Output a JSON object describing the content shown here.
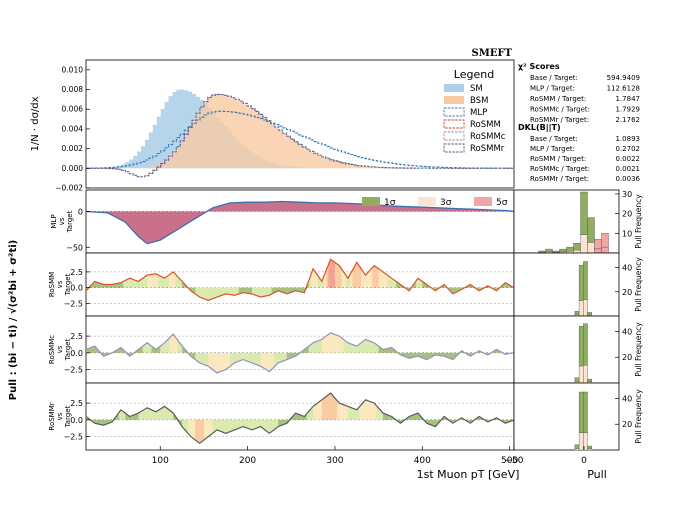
{
  "chart_data": [
    {
      "panel": "distribution",
      "type": "step-histogram",
      "title": "SMEFT",
      "ylabel": "1/N · dσ/dx",
      "ylim": [
        -0.002,
        0.011
      ],
      "yticks": [
        "0.010",
        "0.008",
        "0.006",
        "0.004",
        "0.002",
        "0.000",
        "−0.002"
      ],
      "ytick_values": [
        0.01,
        0.008,
        0.006,
        0.004,
        0.002,
        0.0,
        -0.002
      ],
      "x": {
        "range": [
          15,
          505
        ],
        "ticks": [
          100,
          200,
          300,
          400,
          500
        ],
        "tick_labels": [
          "100",
          "200",
          "300",
          "400",
          "500"
        ]
      },
      "legend": {
        "title": "Legend",
        "position": "top-right",
        "entries": [
          {
            "label": "SM",
            "color": "#aecfe8",
            "style": "fill"
          },
          {
            "label": "BSM",
            "color": "#f8caa4",
            "style": "fill"
          },
          {
            "label": "MLP",
            "color": "#2f7fb5",
            "style": "dashed"
          },
          {
            "label": "RoSMM",
            "color": "#d9342b",
            "style": "dashed"
          },
          {
            "label": "RoSMMc",
            "color": "#9a86c4",
            "style": "dashed"
          },
          {
            "label": "RoSMMr",
            "color": "#555a78",
            "style": "dashed"
          }
        ]
      },
      "series": [
        {
          "name": "SM",
          "shape": "peak",
          "peak_x": 123,
          "peak_y": 0.008,
          "left_width": 38,
          "right_width": 62,
          "start_x": 25,
          "end_x": 505
        },
        {
          "name": "BSM",
          "shape": "peak",
          "peak_x": 165,
          "peak_y": 0.0074,
          "left_width": 40,
          "right_width": 85,
          "start_x": 50,
          "end_x": 505
        },
        {
          "name": "MLP",
          "shape": "peak",
          "peak_x": 168,
          "peak_y": 0.0058,
          "left_width": 60,
          "right_width": 120,
          "start_x": 15,
          "end_x": 505
        },
        {
          "name": "RoSMMr",
          "shape": "peak",
          "peak_x": 165,
          "peak_y": 0.0075,
          "left_width": 40,
          "right_width": 85,
          "dip_x": 80,
          "dip_y": -0.0009,
          "start_x": 15,
          "end_x": 505
        }
      ]
    },
    {
      "panel": "pull",
      "type": "area",
      "ylabel_parts": [
        "MLP",
        "vs",
        "Target"
      ],
      "ylim": [
        -58,
        30
      ],
      "yticks": [
        0,
        -50
      ],
      "tick_labels": [
        "0",
        "−50"
      ],
      "x": [
        15,
        40,
        60,
        75,
        85,
        100,
        120,
        140,
        160,
        180,
        200,
        220,
        240,
        260,
        280,
        300,
        320,
        340,
        360,
        380,
        400,
        420,
        440,
        460,
        480,
        500,
        505
      ],
      "values": [
        0,
        -2,
        -15,
        -35,
        -45,
        -40,
        -25,
        -10,
        5,
        12,
        13,
        13,
        14,
        13,
        12,
        12,
        11,
        10,
        8,
        7,
        6,
        5,
        4,
        3,
        2,
        1,
        0
      ],
      "colors": {
        "negative": "#c4607e",
        "positive": "#c4607e",
        "line": "#3f6fb0"
      },
      "histogram": {
        "xlim": [
          -50,
          25
        ],
        "ylim": [
          0,
          32
        ],
        "yticks": [
          10,
          20,
          30
        ],
        "tick_labels": [
          "10",
          "20",
          "30"
        ],
        "bins": [
          {
            "x": -30,
            "h": 1
          },
          {
            "x": -25,
            "h": 2
          },
          {
            "x": -20,
            "h": 1
          },
          {
            "x": -15,
            "h": 2
          },
          {
            "x": -10,
            "h": 3
          },
          {
            "x": -5,
            "h": 5
          },
          {
            "x": 0,
            "h": 31
          },
          {
            "x": 5,
            "h": 18
          },
          {
            "x": 10,
            "h": 7
          },
          {
            "x": 15,
            "h": 10
          }
        ]
      },
      "hist_ylabel": "Pull Frequency",
      "bands_legend": [
        "1σ",
        "3σ",
        "5σ"
      ]
    },
    {
      "panel": "pull",
      "type": "area",
      "ylabel_parts": [
        "RoSMM",
        "vs",
        "Target"
      ],
      "ylim": [
        -4.5,
        5.5
      ],
      "yticks": [
        2.5,
        0,
        -2.5
      ],
      "tick_labels": [
        "2.5",
        "0.0",
        "−2.5"
      ],
      "x": [
        15,
        25,
        35,
        45,
        55,
        65,
        75,
        85,
        95,
        105,
        115,
        125,
        135,
        145,
        155,
        165,
        175,
        185,
        195,
        205,
        215,
        225,
        235,
        245,
        255,
        265,
        275,
        285,
        295,
        305,
        315,
        325,
        335,
        345,
        355,
        365,
        375,
        385,
        395,
        405,
        415,
        425,
        435,
        445,
        455,
        465,
        475,
        485,
        495,
        505
      ],
      "values": [
        -0.5,
        1.0,
        0.5,
        0.5,
        0.8,
        1.5,
        1.0,
        2.0,
        2.2,
        1.5,
        2.5,
        1.0,
        -0.5,
        -1.5,
        -2.0,
        -1.5,
        -1.0,
        -1.2,
        -0.8,
        -1.0,
        -1.5,
        -1.2,
        -0.5,
        -1.0,
        -0.5,
        -0.8,
        3.0,
        1.0,
        4.5,
        3.5,
        1.5,
        4.0,
        2.0,
        3.5,
        2.5,
        1.5,
        0.5,
        -0.5,
        1.5,
        0.5,
        -0.5,
        0.5,
        -1.0,
        -0.3,
        0.5,
        -0.5,
        0.3,
        -0.5,
        0.8,
        0.0
      ],
      "line_color": "#d9542b",
      "histogram": {
        "xlim": [
          -50,
          25
        ],
        "ylim": [
          0,
          52
        ],
        "yticks": [
          20,
          40
        ],
        "tick_labels": [
          "20",
          "40"
        ],
        "bins": [
          {
            "x": -5,
            "h": 4
          },
          {
            "x": -2,
            "h": 42
          },
          {
            "x": 1,
            "h": 45
          },
          {
            "x": 4,
            "h": 3
          }
        ]
      },
      "hist_ylabel": "Pull Frequency"
    },
    {
      "panel": "pull",
      "type": "area",
      "ylabel_parts": [
        "RoSMMc",
        "vs",
        "Target"
      ],
      "ylim": [
        -4.5,
        5.5
      ],
      "yticks": [
        2.5,
        0,
        -2.5
      ],
      "tick_labels": [
        "2.5",
        "0.0",
        "−2.5"
      ],
      "x": [
        15,
        25,
        35,
        45,
        55,
        65,
        75,
        85,
        95,
        105,
        115,
        125,
        135,
        145,
        155,
        165,
        175,
        185,
        195,
        205,
        215,
        225,
        235,
        245,
        255,
        265,
        275,
        285,
        295,
        305,
        315,
        325,
        335,
        345,
        355,
        365,
        375,
        385,
        395,
        405,
        415,
        425,
        435,
        445,
        455,
        465,
        475,
        485,
        495,
        505
      ],
      "values": [
        0.5,
        1.0,
        -0.5,
        0.0,
        0.8,
        -0.5,
        0.5,
        1.5,
        0.5,
        1.5,
        2.8,
        1.0,
        -0.5,
        -1.5,
        -2.0,
        -3.0,
        -2.5,
        -1.5,
        -1.0,
        -1.5,
        -2.0,
        -2.8,
        -1.5,
        -1.0,
        -0.5,
        0.5,
        1.5,
        2.0,
        3.0,
        2.5,
        1.5,
        1.0,
        2.0,
        1.5,
        0.5,
        0.8,
        -0.3,
        -0.8,
        -0.5,
        -1.0,
        -0.3,
        -0.5,
        -1.0,
        0.3,
        -0.5,
        0.3,
        -0.3,
        0.5,
        -0.2,
        0.0
      ],
      "line_color": "#9a8fb8",
      "histogram": {
        "xlim": [
          -50,
          25
        ],
        "ylim": [
          0,
          52
        ],
        "yticks": [
          20,
          40
        ],
        "tick_labels": [
          "20",
          "40"
        ],
        "bins": [
          {
            "x": -5,
            "h": 4
          },
          {
            "x": -2,
            "h": 44
          },
          {
            "x": 1,
            "h": 46
          },
          {
            "x": 4,
            "h": 3
          }
        ]
      },
      "hist_ylabel": "Pull Frequency"
    },
    {
      "panel": "pull",
      "type": "area",
      "ylabel_parts": [
        "RoSMMr",
        "vs",
        "Target"
      ],
      "ylim": [
        -4.5,
        5.5
      ],
      "yticks": [
        2.5,
        0,
        -2.5
      ],
      "tick_labels": [
        "2.5",
        "0.0",
        "−2.5"
      ],
      "x": [
        15,
        25,
        35,
        45,
        55,
        65,
        75,
        85,
        95,
        105,
        115,
        125,
        135,
        145,
        155,
        165,
        175,
        185,
        195,
        205,
        215,
        225,
        235,
        245,
        255,
        265,
        275,
        285,
        295,
        305,
        315,
        325,
        335,
        345,
        355,
        365,
        375,
        385,
        395,
        405,
        415,
        425,
        435,
        445,
        455,
        465,
        475,
        485,
        495,
        505
      ],
      "values": [
        0.5,
        -0.5,
        -0.8,
        -0.3,
        1.5,
        0.5,
        1.0,
        1.8,
        1.2,
        2.0,
        1.0,
        -1.0,
        -2.5,
        -3.5,
        -2.5,
        -1.5,
        -2.0,
        -1.5,
        -1.0,
        -1.5,
        -1.0,
        -2.0,
        -1.0,
        -0.5,
        1.0,
        0.5,
        2.0,
        3.0,
        4.0,
        2.5,
        2.0,
        1.5,
        3.0,
        2.5,
        1.0,
        0.5,
        -0.5,
        0.5,
        1.0,
        -0.5,
        -1.0,
        0.5,
        -0.5,
        0.3,
        -0.5,
        0.5,
        -0.3,
        0.3,
        -0.5,
        0.0
      ],
      "line_color": "#5a5a5a",
      "histogram": {
        "xlim": [
          -50,
          25
        ],
        "ylim": [
          0,
          52
        ],
        "yticks": [
          20,
          40
        ],
        "tick_labels": [
          "20",
          "40"
        ],
        "bins": [
          {
            "x": -5,
            "h": 4
          },
          {
            "x": -2,
            "h": 45
          },
          {
            "x": 1,
            "h": 45
          },
          {
            "x": 4,
            "h": 3
          }
        ]
      },
      "hist_ylabel": "Pull Frequency"
    }
  ],
  "labels": {
    "xlabel": "1st Muon pT [GeV]",
    "hist_xlabel": "Pull",
    "hist_xticks": [
      "−50",
      "0"
    ],
    "pull_axis_label": "Pull : (bi − ti) / √(σ²bi + σ²ti)"
  },
  "scores": {
    "chi2_title": "χ² Scores",
    "chi2_rows": [
      {
        "label": "Base / Target:",
        "value": "594.9409"
      },
      {
        "label": "MLP / Target:",
        "value": "112.6128"
      },
      {
        "label": "RoSMM / Target:",
        "value": "1.7847"
      },
      {
        "label": "RoSMMc / Target:",
        "value": "1.7929"
      },
      {
        "label": "RoSMMr / Target:",
        "value": "2.1762"
      }
    ],
    "dkl_title": "DKL(B||T)",
    "dkl_rows": [
      {
        "label": "Base / Target:",
        "value": "1.0893"
      },
      {
        "label": "MLP / Target:",
        "value": "0.2702"
      },
      {
        "label": "RoSMM / Target:",
        "value": "0.0022"
      },
      {
        "label": "RoSMMc / Target:",
        "value": "0.0021"
      },
      {
        "label": "RoSMMr / Target:",
        "value": "0.0036"
      }
    ]
  },
  "colors": {
    "sm_fill": "#aecfe8",
    "bsm_fill": "#f8caa4",
    "mlp": "#2f7fb5",
    "rosmm": "#d9342b",
    "rosmmc": "#9a86c4",
    "rosmmr": "#555a78",
    "band1": "#8fae62",
    "band3": "#fbe4d3",
    "band5": "#f1a6a6"
  }
}
